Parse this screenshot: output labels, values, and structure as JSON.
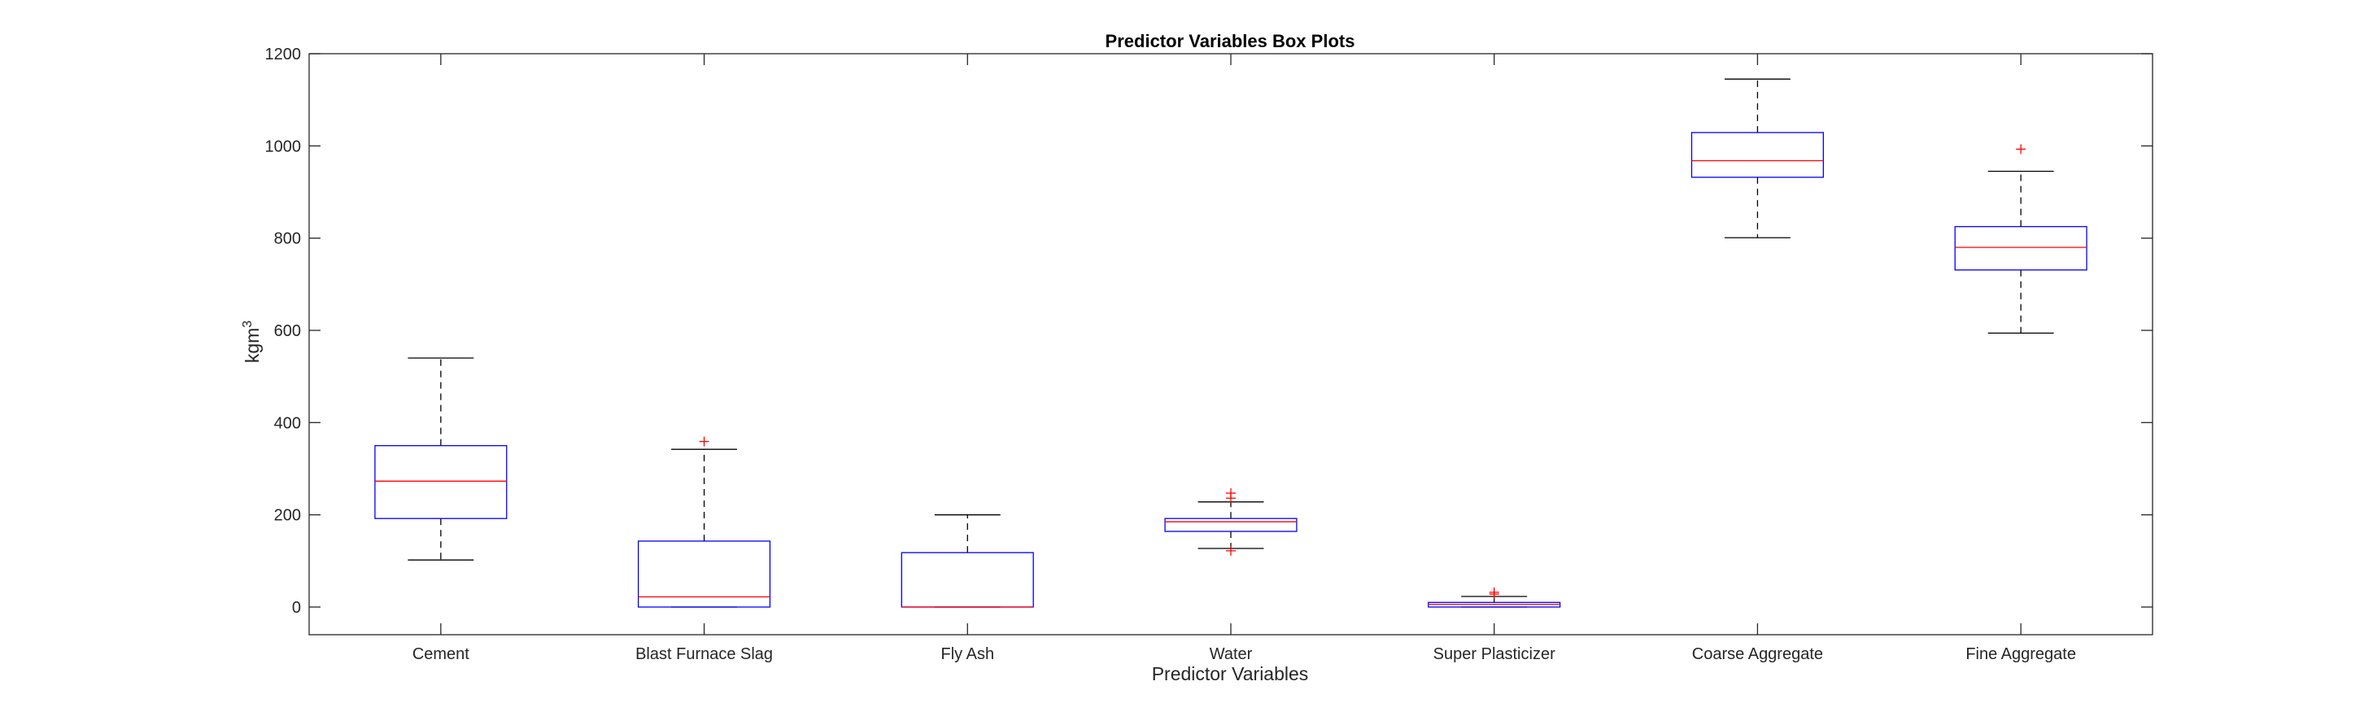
{
  "chart_data": {
    "type": "box",
    "title": "Predictor Variables Box Plots",
    "xlabel": "Predictor Variables",
    "ylabel": "kgm",
    "ylabel_superscript": "3",
    "ylim": [
      -60,
      1200
    ],
    "yticks": [
      0,
      200,
      400,
      600,
      800,
      1000,
      1200
    ],
    "grid": false,
    "categories": [
      "Cement",
      "Blast Furnace Slag",
      "Fly Ash",
      "Water",
      "Super Plasticizer",
      "Coarse Aggregate",
      "Fine Aggregate"
    ],
    "boxes": [
      {
        "category": "Cement",
        "whisker_low": 102,
        "q1": 192,
        "median": 273,
        "q3": 350,
        "whisker_high": 540,
        "outliers": []
      },
      {
        "category": "Blast Furnace Slag",
        "whisker_low": 0,
        "q1": 0,
        "median": 22,
        "q3": 143,
        "whisker_high": 342,
        "outliers": [
          359
        ]
      },
      {
        "category": "Fly Ash",
        "whisker_low": 0,
        "q1": 0,
        "median": 0,
        "q3": 118,
        "whisker_high": 200,
        "outliers": []
      },
      {
        "category": "Water",
        "whisker_low": 127,
        "q1": 164,
        "median": 185,
        "q3": 192,
        "whisker_high": 228,
        "outliers": [
          122,
          236,
          247
        ]
      },
      {
        "category": "Super Plasticizer",
        "whisker_low": 0,
        "q1": 0,
        "median": 6,
        "q3": 10,
        "whisker_high": 23,
        "outliers": [
          28,
          32
        ]
      },
      {
        "category": "Coarse Aggregate",
        "whisker_low": 801,
        "q1": 932,
        "median": 968,
        "q3": 1029,
        "whisker_high": 1145,
        "outliers": []
      },
      {
        "category": "Fine Aggregate",
        "whisker_low": 594,
        "q1": 731,
        "median": 780,
        "q3": 825,
        "whisker_high": 945,
        "outliers": [
          993
        ]
      }
    ],
    "colors": {
      "box": "#0000ff",
      "median": "#ff0000",
      "whisker": "#000000",
      "outlier": "#ff0000",
      "axis": "#262626"
    }
  }
}
